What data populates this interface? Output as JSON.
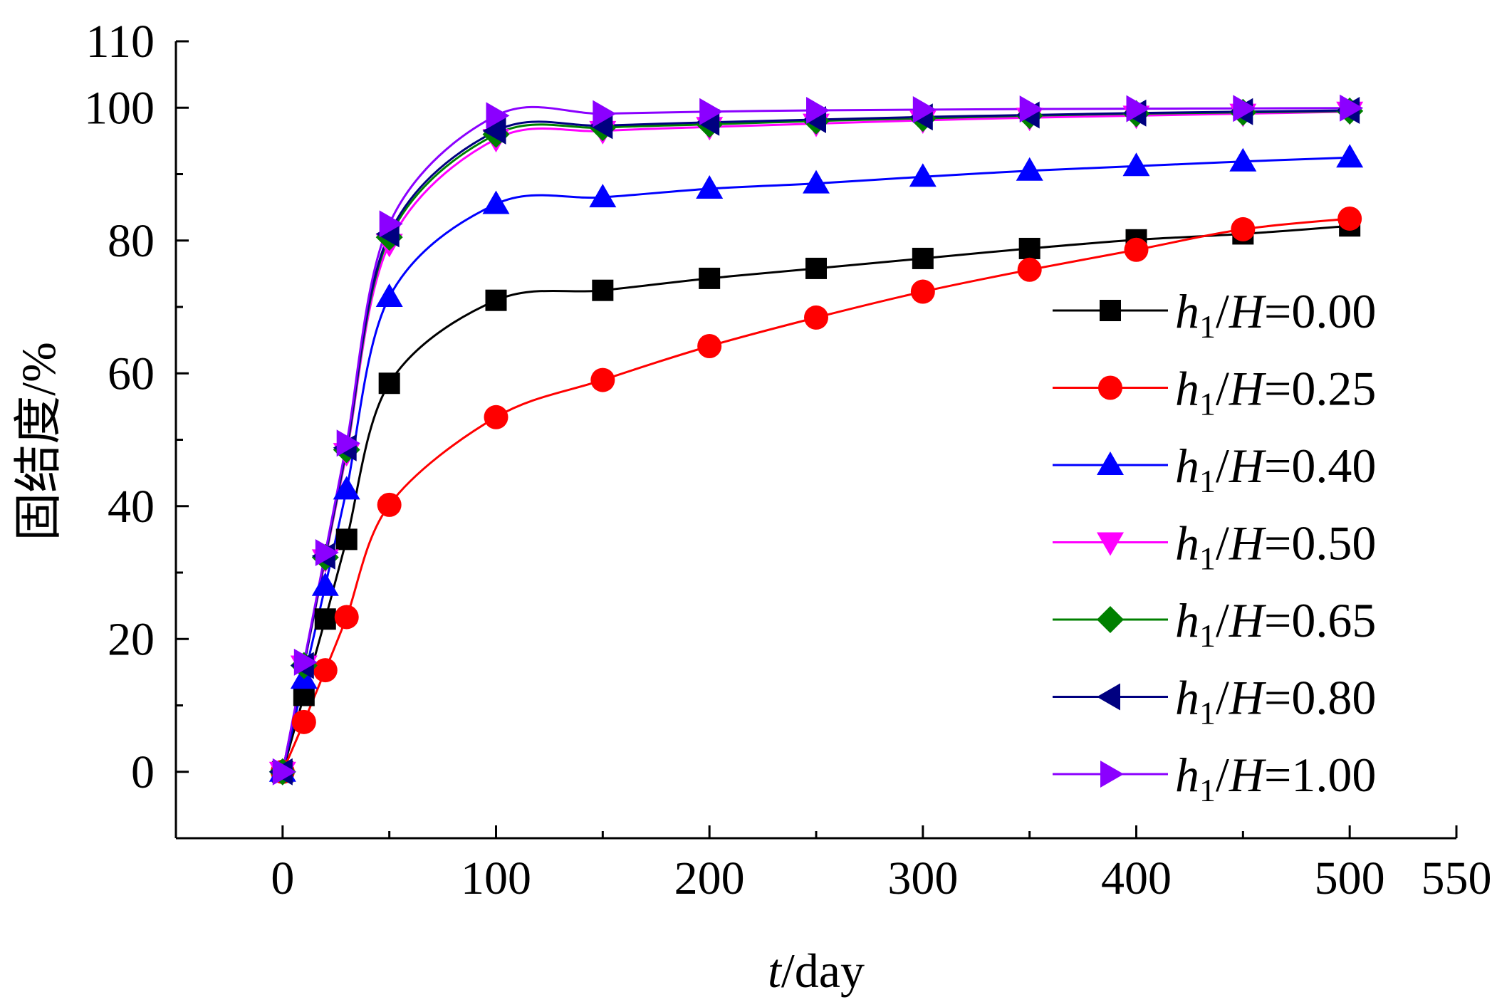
{
  "chart_data": {
    "type": "line",
    "title": "",
    "xlabel_italic": "t",
    "xlabel_rest": "/day",
    "ylabel": "固结度/%",
    "xlim": [
      -50,
      550
    ],
    "ylim": [
      -10,
      110
    ],
    "xticks": [
      0,
      100,
      200,
      300,
      400,
      500,
      550
    ],
    "xtick_labels": [
      "0",
      "100",
      "200",
      "300",
      "400",
      "500",
      "550"
    ],
    "yticks": [
      0,
      20,
      40,
      60,
      80,
      100,
      110
    ],
    "ytick_labels": [
      "0",
      "20",
      "40",
      "60",
      "80",
      "100",
      "110"
    ],
    "x": [
      0,
      10,
      20,
      30,
      50,
      100,
      150,
      200,
      250,
      300,
      350,
      400,
      450,
      500
    ],
    "legend_position": "right",
    "series": [
      {
        "name": "h1/H=0.00",
        "legend_var": "h",
        "legend_sub": "1",
        "legend_mid": "/",
        "legend_var2": "H",
        "legend_value": "=0.00",
        "color": "#000000",
        "marker": "square",
        "values": [
          0,
          11.5,
          23,
          35,
          58.5,
          71,
          72.5,
          74.3,
          75.8,
          77.3,
          78.8,
          80.1,
          81,
          82.2
        ]
      },
      {
        "name": "h1/H=0.25",
        "legend_var": "h",
        "legend_sub": "1",
        "legend_mid": "/",
        "legend_var2": "H",
        "legend_value": "=0.25",
        "color": "#ff0000",
        "marker": "circle",
        "values": [
          0,
          7.5,
          15.3,
          23.3,
          40.2,
          53.4,
          59,
          64.1,
          68.4,
          72.3,
          75.6,
          78.6,
          81.7,
          83.3
        ]
      },
      {
        "name": "h1/H=0.40",
        "legend_var": "h",
        "legend_sub": "1",
        "legend_mid": "/",
        "legend_var2": "H",
        "legend_value": "=0.40",
        "color": "#0000ff",
        "marker": "triangle-up",
        "values": [
          0,
          14,
          28,
          42.5,
          71.5,
          85.5,
          86.5,
          87.8,
          88.6,
          89.6,
          90.5,
          91.2,
          91.9,
          92.5
        ]
      },
      {
        "name": "h1/H=0.50",
        "legend_var": "h",
        "legend_sub": "1",
        "legend_mid": "/",
        "legend_var2": "H",
        "legend_value": "=0.50",
        "color": "#ff00ff",
        "marker": "triangle-down",
        "values": [
          0,
          16,
          32,
          48,
          79.5,
          95.3,
          96.5,
          97.1,
          97.6,
          98.1,
          98.5,
          98.8,
          99.1,
          99.4
        ]
      },
      {
        "name": "h1/H=0.65",
        "legend_var": "h",
        "legend_sub": "1",
        "legend_mid": "/",
        "legend_var2": "H",
        "legend_value": "=0.65",
        "color": "#008000",
        "marker": "diamond",
        "values": [
          0,
          16,
          32.3,
          48.5,
          80.5,
          96,
          97,
          97.5,
          98,
          98.4,
          98.8,
          99.1,
          99.3,
          99.5
        ]
      },
      {
        "name": "h1/H=0.80",
        "legend_var": "h",
        "legend_sub": "1",
        "legend_mid": "/",
        "legend_var2": "H",
        "legend_value": "=0.80",
        "color": "#000080",
        "marker": "triangle-left",
        "values": [
          0,
          16,
          32.5,
          48.8,
          81,
          96.5,
          97.3,
          97.8,
          98.2,
          98.6,
          98.9,
          99.2,
          99.4,
          99.6
        ]
      },
      {
        "name": "h1/H=1.00",
        "legend_var": "h",
        "legend_sub": "1",
        "legend_mid": "/",
        "legend_var2": "H",
        "legend_value": "=1.00",
        "color": "#8b00ff",
        "marker": "triangle-right",
        "values": [
          0,
          16.5,
          33,
          49.5,
          82.5,
          98.8,
          99.1,
          99.4,
          99.6,
          99.7,
          99.8,
          99.85,
          99.9,
          99.95
        ]
      }
    ]
  }
}
